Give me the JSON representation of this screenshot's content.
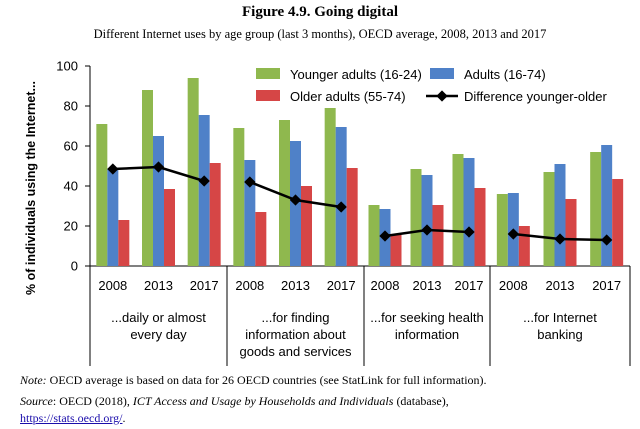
{
  "figure": {
    "title": "Figure 4.9. Going digital",
    "subtitle": "Different Internet uses by age group (last 3 months), OECD average, 2008, 2013 and 2017"
  },
  "chart_data": {
    "type": "bar",
    "ylabel": "% of individuals using the Internet...",
    "ylim": [
      0,
      100
    ],
    "yticks": [
      0,
      20,
      40,
      60,
      80,
      100
    ],
    "grid": false,
    "legend_position": "top",
    "groups": [
      {
        "label_lines": [
          "...daily or almost",
          "every day"
        ],
        "years": [
          "2008",
          "2013",
          "2017"
        ]
      },
      {
        "label_lines": [
          "...for finding",
          "information about",
          "goods and services"
        ],
        "years": [
          "2008",
          "2013",
          "2017"
        ]
      },
      {
        "label_lines": [
          "...for seeking health",
          "information"
        ],
        "years": [
          "2008",
          "2013",
          "2017"
        ]
      },
      {
        "label_lines": [
          "...for Internet",
          "banking"
        ],
        "years": [
          "2008",
          "2013",
          "2017"
        ]
      }
    ],
    "series": [
      {
        "name": "Younger adults (16-24)",
        "kind": "bar",
        "color": "#8fb84e",
        "values": [
          71,
          88,
          94,
          69,
          73,
          79,
          30.5,
          48.5,
          56,
          36,
          47,
          57
        ]
      },
      {
        "name": "Adults (16-74)",
        "kind": "bar",
        "color": "#4f81c8",
        "values": [
          48.5,
          65,
          75.5,
          53,
          62.5,
          69.5,
          28.5,
          45.5,
          54,
          36.5,
          51,
          60.5
        ]
      },
      {
        "name": "Older adults (55-74)",
        "kind": "bar",
        "color": "#d64646",
        "values": [
          23,
          38.5,
          51.5,
          27,
          40,
          49,
          16,
          30.5,
          39,
          20,
          33.5,
          43.5
        ]
      },
      {
        "name": "Difference younger-older",
        "kind": "line",
        "color": "#000000",
        "values": [
          48.5,
          49.5,
          42.5,
          42,
          33,
          29.5,
          15,
          18,
          17,
          16,
          13.5,
          13
        ]
      }
    ]
  },
  "footer": {
    "note_label": "Note:",
    "note_text": " OECD average is based on data for 26 OECD countries (see StatLink for full information).",
    "source_label": "Source",
    "source_text_1": ": OECD (2018), ",
    "source_title": "ICT Access and Usage by Households and Individuals",
    "source_text_2": " (database),",
    "source_link": "https://stats.oecd.org/",
    "source_end": "."
  }
}
